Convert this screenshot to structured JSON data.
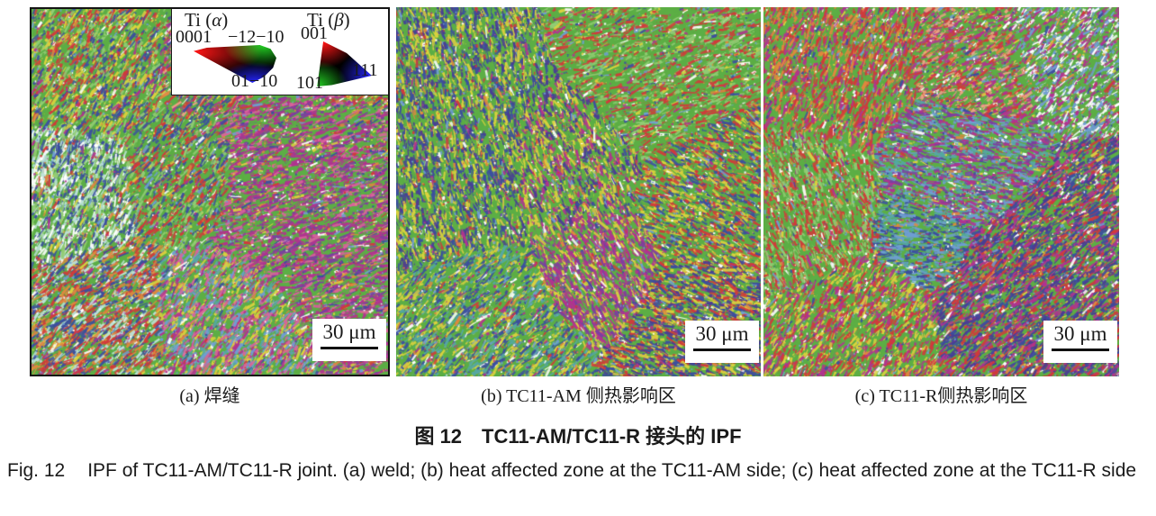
{
  "figure": {
    "caption_zh": "图 12　TC11-AM/TC11-R 接头的 IPF",
    "caption_en_label": "Fig. 12",
    "caption_en_text": "IPF of TC11-AM/TC11-R joint. (a) weld; (b) heat affected zone at the TC11-AM side; (c) heat affected zone at the TC11-R side"
  },
  "color_key": {
    "alpha": {
      "element": "Ti",
      "title_open": "(",
      "phase": "α",
      "title_close": ")",
      "pole_top_left": "0001",
      "pole_top_right": "−12−10",
      "pole_bottom": "01−10"
    },
    "beta": {
      "element": "Ti",
      "title_open": "(",
      "phase": "β",
      "title_close": ")",
      "pole_top": "001",
      "pole_bottom_left": "101",
      "pole_bottom_right": "111"
    }
  },
  "panels": [
    {
      "label": "(a) 焊缝",
      "scale_bar": "30 μm"
    },
    {
      "label": "(b) TC11-AM 侧热影响区",
      "scale_bar": "30 μm"
    },
    {
      "label": "(c) TC11-R侧热影响区",
      "scale_bar": "30 μm"
    }
  ],
  "ipf_colors": {
    "red": "#d23a3a",
    "orange": "#e0883e",
    "yellow": "#dcd23e",
    "green": "#5cae45",
    "light_green": "#92cc74",
    "pale_cyan": "#bce2d8",
    "teal": "#55a8a2",
    "sky_blue": "#6f9ed2",
    "blue": "#3c4f9f",
    "indigo": "#4a3d94",
    "purple": "#7c3fa0",
    "magenta": "#b23390",
    "pink": "#d9649c",
    "salmon": "#eca284",
    "white": "#ffffff"
  }
}
